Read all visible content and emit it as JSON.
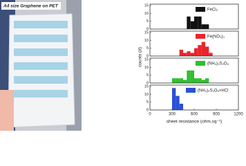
{
  "photo": {
    "caption": "A4 size Graphene on PET"
  },
  "chart_data": [
    {
      "type": "histogram",
      "name": "FeCl₃",
      "color": "#111111",
      "bins": [
        500,
        550,
        600,
        650,
        700,
        750,
        800
      ],
      "counts": [
        8,
        5,
        8,
        8,
        3,
        3
      ],
      "xlim": [
        0,
        1200
      ],
      "ylim": [
        0,
        15
      ],
      "yticks": [
        0,
        5,
        10,
        15
      ]
    },
    {
      "type": "histogram",
      "name": "Fe(NO₃)₃",
      "color": "#e8262c",
      "bins": [
        400,
        450,
        500,
        550,
        600,
        650,
        700,
        750,
        800,
        850
      ],
      "counts": [
        4,
        2,
        3,
        2,
        5,
        7,
        9,
        6,
        2
      ],
      "xlim": [
        0,
        1200
      ],
      "ylim": [
        0,
        15
      ],
      "yticks": [
        0,
        5,
        10,
        15
      ],
      "y_label": "counts (#)"
    },
    {
      "type": "histogram",
      "name": "(NH₄)₂S₂O₈",
      "color": "#2fbf2f",
      "bins": [
        300,
        350,
        400,
        450,
        500,
        550,
        600,
        650,
        700,
        750,
        800
      ],
      "counts": [
        3,
        3,
        3,
        2,
        8,
        8,
        3,
        3,
        2,
        3
      ],
      "xlim": [
        0,
        1200
      ],
      "ylim": [
        0,
        15
      ],
      "yticks": [
        0,
        5,
        10,
        15
      ]
    },
    {
      "type": "histogram",
      "name": "(NH₄)₂S₂O₈+HCl",
      "color": "#2a4fd6",
      "bins": [
        300,
        350,
        400,
        450
      ],
      "counts": [
        14,
        9,
        4
      ],
      "xlim": [
        0,
        1200
      ],
      "ylim": [
        0,
        15
      ],
      "yticks": [
        0,
        5,
        10,
        15
      ],
      "xticks": [
        0,
        300,
        600,
        900,
        1200
      ],
      "x_label": "sheet resistance (ohm.sq⁻¹)"
    }
  ]
}
